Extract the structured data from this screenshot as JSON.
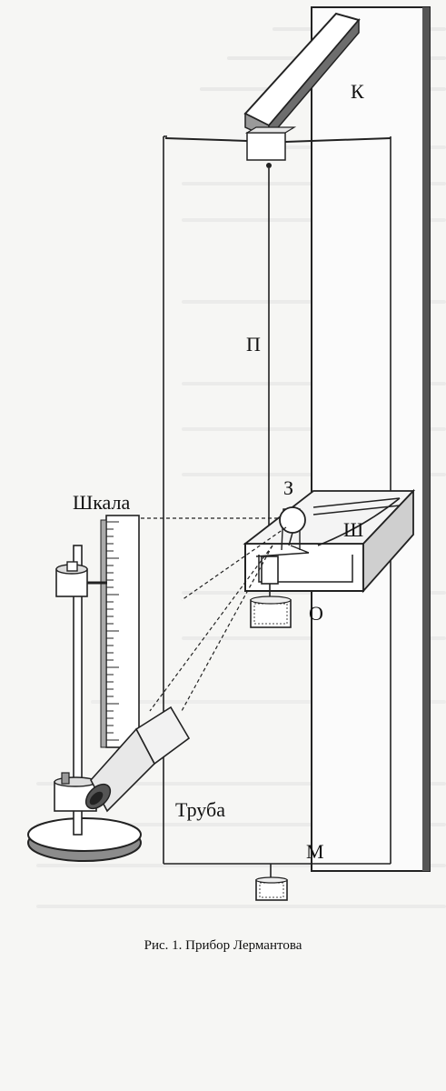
{
  "figure": {
    "labels": {
      "K": "К",
      "P": "П",
      "Z": "З",
      "Sh": "Ш",
      "O": "О",
      "M": "М",
      "scale": "Шкала",
      "tube": "Труба"
    },
    "caption": "Рис. 1. Прибор Лермантова"
  }
}
